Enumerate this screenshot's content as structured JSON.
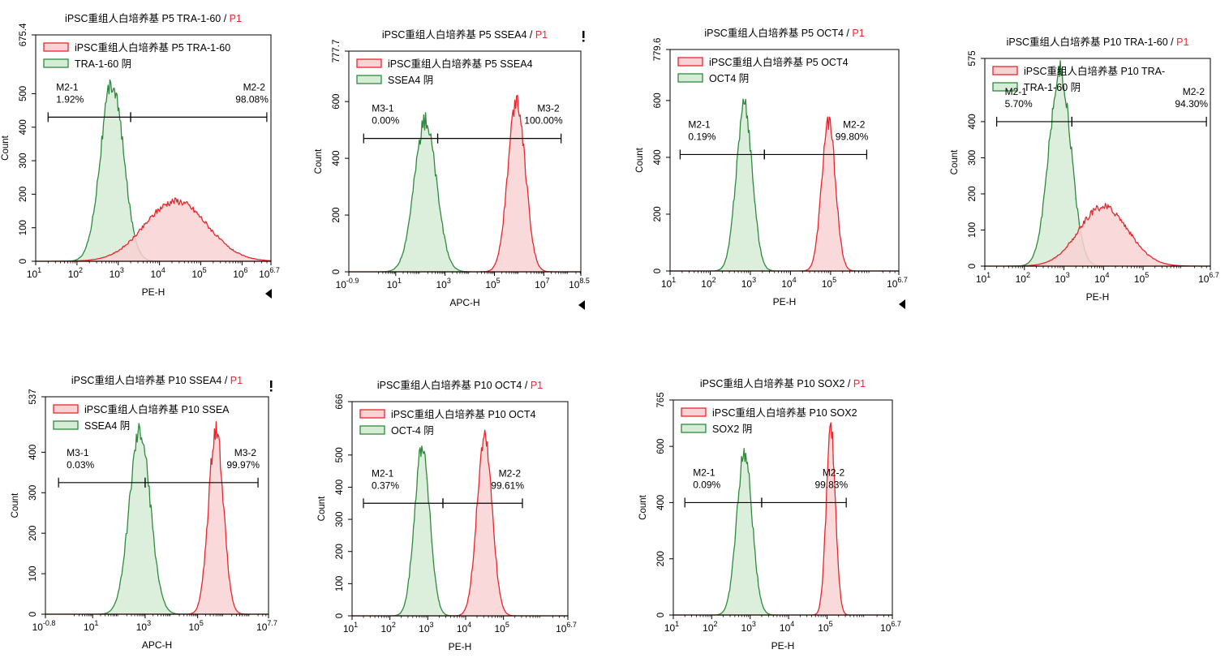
{
  "colors": {
    "positive_line": "#e8262c",
    "positive_fill": "#f8d2d4",
    "negative_line": "#2e8b3b",
    "negative_fill": "#d5ecd6",
    "title_gate": "#e8262c",
    "axis": "#000000"
  },
  "chart_data": [
    {
      "type": "area",
      "title": "iPSC重组人白培养基 P5 TRA-1-60",
      "title_gate": "P1",
      "xlabel": "PE-H",
      "ylabel": "Count",
      "x_scale": "log",
      "x_ticks": [
        {
          "base": "10",
          "exp": "1"
        },
        {
          "base": "10",
          "exp": "2"
        },
        {
          "base": "10",
          "exp": "3"
        },
        {
          "base": "10",
          "exp": "4"
        },
        {
          "base": "10",
          "exp": "5"
        },
        {
          "base": "10",
          "exp": "6"
        },
        {
          "base": "10",
          "exp": "6.7"
        }
      ],
      "y_tick_labels": [
        "0",
        "100",
        "200",
        "300",
        "400",
        "500",
        "675.4"
      ],
      "xlim": [
        1,
        6.7
      ],
      "ylim": [
        0,
        675.4
      ],
      "y_ticks": [
        0,
        100,
        200,
        300,
        400,
        500,
        675.4
      ],
      "legend": [
        {
          "label": "iPSC重组人白培养基 P5 TRA-1-60",
          "role": "positive"
        },
        {
          "label": "TRA-1-60 阴",
          "role": "negative"
        }
      ],
      "series": [
        {
          "name": "TRA-1-60 阴",
          "role": "negative",
          "peak_log": 2.85,
          "sigma_log": 0.28,
          "peak_count": 530
        },
        {
          "name": "iPSC重组人白培养基 P5 TRA-1-60",
          "role": "positive",
          "peak_log": 4.4,
          "sigma_log": 0.75,
          "peak_count": 180
        }
      ],
      "gates": [
        {
          "name": "M2-1",
          "percent": "1.92%",
          "from": 1.3,
          "to": 3.3
        },
        {
          "name": "M2-2",
          "percent": "98.08%",
          "from": 3.3,
          "to": 6.6
        }
      ],
      "gate_y": 430
    },
    {
      "type": "area",
      "title": "iPSC重组人白培养基 P5 SSEA4",
      "title_gate": "P1",
      "xlabel": "APC-H",
      "ylabel": "Count",
      "x_scale": "log",
      "x_ticks": [
        {
          "base": "10",
          "exp": "-0.9"
        },
        {
          "base": "10",
          "exp": "1"
        },
        {
          "base": "10",
          "exp": "3"
        },
        {
          "base": "10",
          "exp": "5"
        },
        {
          "base": "10",
          "exp": "7"
        },
        {
          "base": "10",
          "exp": "8.5"
        }
      ],
      "y_tick_labels": [
        "0",
        "200",
        "400",
        "600",
        "777.7"
      ],
      "xlim": [
        -0.9,
        8.5
      ],
      "ylim": [
        0,
        777.7
      ],
      "y_ticks": [
        0,
        200,
        400,
        600,
        777.7
      ],
      "legend": [
        {
          "label": "iPSC重组人白培养基 P5 SSEA4",
          "role": "positive"
        },
        {
          "label": "SSEA4 阴",
          "role": "negative"
        }
      ],
      "series": [
        {
          "name": "SSEA4 阴",
          "role": "negative",
          "peak_log": 2.2,
          "sigma_log": 0.45,
          "peak_count": 530
        },
        {
          "name": "iPSC重组人白培养基 P5 SSEA4",
          "role": "positive",
          "peak_log": 5.9,
          "sigma_log": 0.35,
          "peak_count": 610
        }
      ],
      "gates": [
        {
          "name": "M3-1",
          "percent": "0.00%",
          "from": -0.3,
          "to": 2.7
        },
        {
          "name": "M3-2",
          "percent": "100.00%",
          "from": 2.7,
          "to": 7.7
        }
      ],
      "gate_y": 470
    },
    {
      "type": "area",
      "title": "iPSC重组人白培养基 P5 OCT4",
      "title_gate": "P1",
      "xlabel": "PE-H",
      "ylabel": "Count",
      "x_scale": "log",
      "x_ticks": [
        {
          "base": "10",
          "exp": "1"
        },
        {
          "base": "10",
          "exp": "2"
        },
        {
          "base": "10",
          "exp": "3"
        },
        {
          "base": "10",
          "exp": "4"
        },
        {
          "base": "10",
          "exp": "5"
        },
        {
          "base": "10",
          "exp": "6.7"
        }
      ],
      "y_tick_labels": [
        "0",
        "200",
        "400",
        "600",
        "779.6"
      ],
      "xlim": [
        1,
        6.7
      ],
      "ylim": [
        0,
        779.6
      ],
      "y_ticks": [
        0,
        200,
        400,
        600,
        779.6
      ],
      "legend": [
        {
          "label": "iPSC重组人白培养基 P5 OCT4",
          "role": "positive"
        },
        {
          "label": "OCT4 阴",
          "role": "negative"
        }
      ],
      "series": [
        {
          "name": "OCT4 阴",
          "role": "negative",
          "peak_log": 2.85,
          "sigma_log": 0.2,
          "peak_count": 580
        },
        {
          "name": "iPSC重组人白培养基 P5 OCT4",
          "role": "positive",
          "peak_log": 4.95,
          "sigma_log": 0.17,
          "peak_count": 530
        }
      ],
      "gates": [
        {
          "name": "M2-1",
          "percent": "0.19%",
          "from": 1.25,
          "to": 3.35
        },
        {
          "name": "M2-2",
          "percent": "99.80%",
          "from": 3.35,
          "to": 5.9
        }
      ],
      "gate_y": 410
    },
    {
      "type": "area",
      "title": "iPSC重组人白培养基 P10 TRA-1-60",
      "title_gate": "P1",
      "xlabel": "PE-H",
      "ylabel": "Count",
      "x_scale": "log",
      "x_ticks": [
        {
          "base": "10",
          "exp": "1"
        },
        {
          "base": "10",
          "exp": "2"
        },
        {
          "base": "10",
          "exp": "3"
        },
        {
          "base": "10",
          "exp": "4"
        },
        {
          "base": "10",
          "exp": "5"
        },
        {
          "base": "10",
          "exp": "6.7"
        }
      ],
      "y_tick_labels": [
        "0",
        "100",
        "200",
        "300",
        "400",
        "575"
      ],
      "xlim": [
        1,
        6.7
      ],
      "ylim": [
        0,
        575
      ],
      "y_ticks": [
        0,
        100,
        200,
        300,
        400,
        575
      ],
      "legend": [
        {
          "label": "iPSC重组人白培养基 P10 TRA-",
          "role": "positive"
        },
        {
          "label": "TRA-1-60 阴",
          "role": "negative"
        }
      ],
      "series": [
        {
          "name": "TRA-1-60 阴",
          "role": "negative",
          "peak_log": 2.9,
          "sigma_log": 0.28,
          "peak_count": 540
        },
        {
          "name": "iPSC重组人白培养基 P10 TRA-1-60",
          "role": "positive",
          "peak_log": 4.0,
          "sigma_log": 0.62,
          "peak_count": 165
        }
      ],
      "gates": [
        {
          "name": "M2-1",
          "percent": "5.70%",
          "from": 1.3,
          "to": 3.2
        },
        {
          "name": "M2-2",
          "percent": "94.30%",
          "from": 3.2,
          "to": 6.6
        }
      ],
      "gate_y": 400
    },
    {
      "type": "area",
      "title": "iPSC重组人白培养基 P10 SSEA4",
      "title_gate": "P1",
      "xlabel": "APC-H",
      "ylabel": "Count",
      "x_scale": "log",
      "x_ticks": [
        {
          "base": "10",
          "exp": "-0.8"
        },
        {
          "base": "10",
          "exp": "1"
        },
        {
          "base": "10",
          "exp": "3"
        },
        {
          "base": "10",
          "exp": "5"
        },
        {
          "base": "10",
          "exp": "7.7"
        }
      ],
      "y_tick_labels": [
        "0",
        "100",
        "200",
        "300",
        "400",
        "537"
      ],
      "xlim": [
        -0.8,
        7.7
      ],
      "ylim": [
        0,
        537
      ],
      "y_ticks": [
        0,
        100,
        200,
        300,
        400,
        537
      ],
      "legend": [
        {
          "label": "iPSC重组人白培养基 P10 SSEA",
          "role": "positive"
        },
        {
          "label": "SSEA4 阴",
          "role": "negative"
        }
      ],
      "series": [
        {
          "name": "SSEA4 阴",
          "role": "negative",
          "peak_log": 2.8,
          "sigma_log": 0.4,
          "peak_count": 450
        },
        {
          "name": "iPSC重组人白培养基 P10 SSEA4",
          "role": "positive",
          "peak_log": 5.7,
          "sigma_log": 0.28,
          "peak_count": 460
        }
      ],
      "gates": [
        {
          "name": "M3-1",
          "percent": "0.03%",
          "from": -0.3,
          "to": 3.0
        },
        {
          "name": "M3-2",
          "percent": "99.97%",
          "from": 3.0,
          "to": 7.3
        }
      ],
      "gate_y": 325
    },
    {
      "type": "area",
      "title": "iPSC重组人白培养基 P10 OCT4",
      "title_gate": "P1",
      "xlabel": "PE-H",
      "ylabel": "Count",
      "x_scale": "log",
      "x_ticks": [
        {
          "base": "10",
          "exp": "1"
        },
        {
          "base": "10",
          "exp": "2"
        },
        {
          "base": "10",
          "exp": "3"
        },
        {
          "base": "10",
          "exp": "4"
        },
        {
          "base": "10",
          "exp": "5"
        },
        {
          "base": "10",
          "exp": "6.7"
        }
      ],
      "y_tick_labels": [
        "0",
        "100",
        "200",
        "300",
        "400",
        "500",
        "666"
      ],
      "xlim": [
        1,
        6.7
      ],
      "ylim": [
        0,
        666
      ],
      "y_ticks": [
        0,
        100,
        200,
        300,
        400,
        500,
        666
      ],
      "legend": [
        {
          "label": "iPSC重组人白培养基 P10 OCT4",
          "role": "positive"
        },
        {
          "label": "OCT-4 阴",
          "role": "negative"
        }
      ],
      "series": [
        {
          "name": "OCT-4 阴",
          "role": "negative",
          "peak_log": 2.85,
          "sigma_log": 0.2,
          "peak_count": 530
        },
        {
          "name": "iPSC重组人白培养基 P10 OCT4",
          "role": "positive",
          "peak_log": 4.5,
          "sigma_log": 0.2,
          "peak_count": 560
        }
      ],
      "gates": [
        {
          "name": "M2-1",
          "percent": "0.37%",
          "from": 1.3,
          "to": 3.4
        },
        {
          "name": "M2-2",
          "percent": "99.61%",
          "from": 3.4,
          "to": 5.5
        }
      ],
      "gate_y": 350
    },
    {
      "type": "area",
      "title": "iPSC重组人白培养基 P10 SOX2",
      "title_gate": "P1",
      "xlabel": "PE-H",
      "ylabel": "Count",
      "x_scale": "log",
      "x_ticks": [
        {
          "base": "10",
          "exp": "1"
        },
        {
          "base": "10",
          "exp": "2"
        },
        {
          "base": "10",
          "exp": "3"
        },
        {
          "base": "10",
          "exp": "4"
        },
        {
          "base": "10",
          "exp": "5"
        },
        {
          "base": "10",
          "exp": "6.7"
        }
      ],
      "y_tick_labels": [
        "0",
        "200",
        "400",
        "600",
        "765"
      ],
      "xlim": [
        1,
        6.7
      ],
      "ylim": [
        0,
        765
      ],
      "y_ticks": [
        0,
        200,
        400,
        600,
        765
      ],
      "legend": [
        {
          "label": "iPSC重组人白培养基 P10 SOX2",
          "role": "positive"
        },
        {
          "label": "SOX2 阴",
          "role": "negative"
        }
      ],
      "series": [
        {
          "name": "SOX2 阴",
          "role": "negative",
          "peak_log": 2.85,
          "sigma_log": 0.2,
          "peak_count": 575
        },
        {
          "name": "iPSC重组人白培养基 P10 SOX2",
          "role": "positive",
          "peak_log": 5.1,
          "sigma_log": 0.12,
          "peak_count": 660
        }
      ],
      "gates": [
        {
          "name": "M2-1",
          "percent": "0.09%",
          "from": 1.3,
          "to": 3.3
        },
        {
          "name": "M2-2",
          "percent": "99.83%",
          "from": 3.3,
          "to": 5.5
        }
      ],
      "gate_y": 400
    }
  ]
}
